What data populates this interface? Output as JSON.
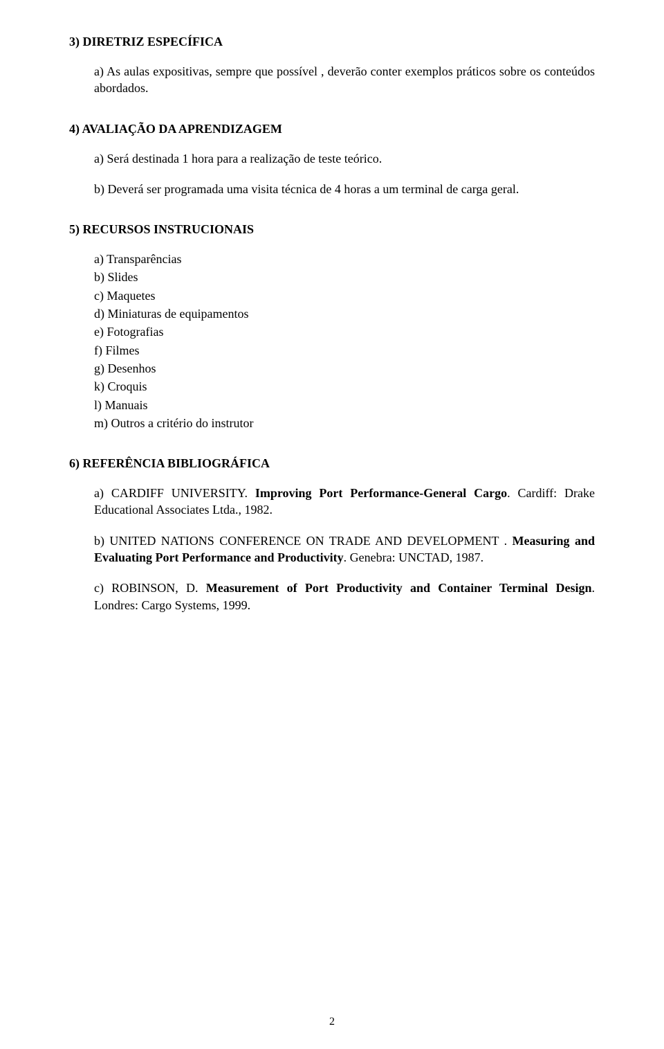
{
  "section3": {
    "heading": "3) DIRETRIZ ESPECÍFICA",
    "a": "a) As aulas expositivas, sempre que possível , deverão conter exemplos práticos sobre os conteúdos abordados."
  },
  "section4": {
    "heading": "4) AVALIAÇÃO DA APRENDIZAGEM",
    "a": "a) Será destinada 1 hora para a realização de teste teórico.",
    "b": "b) Deverá ser programada uma visita técnica de 4 horas a um terminal de carga geral."
  },
  "section5": {
    "heading": "5) RECURSOS INSTRUCIONAIS",
    "items": [
      "a) Transparências",
      "b) Slides",
      "c) Maquetes",
      "d) Miniaturas de equipamentos",
      "e) Fotografias",
      "f) Filmes",
      "g) Desenhos",
      "k) Croquis",
      "l) Manuais",
      "m) Outros a critério do instrutor"
    ]
  },
  "section6": {
    "heading": "6) REFERÊNCIA BIBLIOGRÁFICA",
    "a": {
      "pre": "a) CARDIFF UNIVERSITY. ",
      "bold": "Improving Port Performance-General Cargo",
      "post": ". Cardiff: Drake Educational Associates Ltda., 1982."
    },
    "b": {
      "pre": "b) UNITED NATIONS CONFERENCE ON TRADE AND DEVELOPMENT . ",
      "bold": "Measuring and Evaluating Port Performance and Productivity",
      "post": ". Genebra: UNCTAD, 1987."
    },
    "c": {
      "pre": "c) ROBINSON, D. ",
      "bold": "Measurement of Port Productivity and Container Terminal Design",
      "post": ". Londres: Cargo Systems, 1999."
    }
  },
  "pageNumber": "2"
}
